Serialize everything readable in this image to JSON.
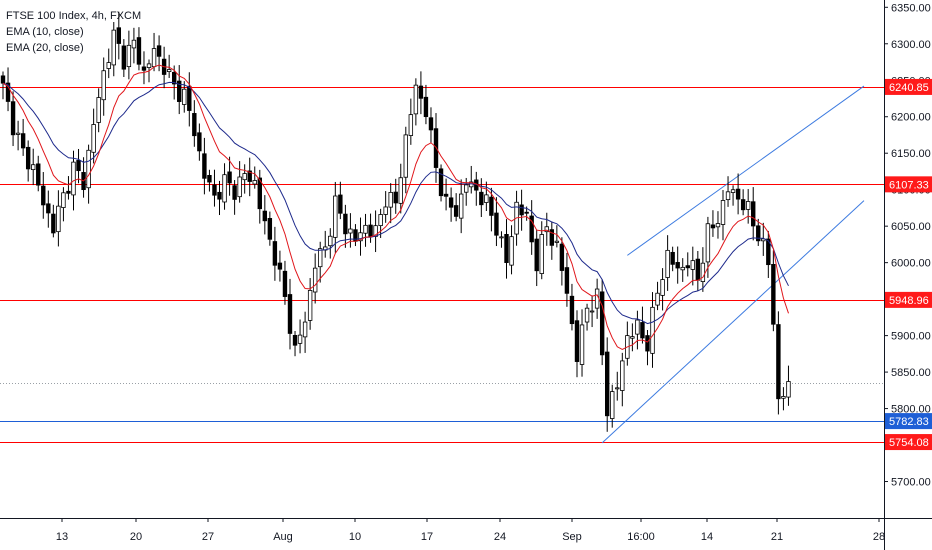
{
  "legend": {
    "symbol": "FTSE 100 Index, 4h, FXCM",
    "ema_fast": "EMA (10, close)",
    "ema_slow": "EMA (20, close)"
  },
  "colors": {
    "background": "#ffffff",
    "up_candle": "#ffffff",
    "down_candle": "#000000",
    "candle_border": "#000000",
    "ema_fast": "#e0161b",
    "ema_slow": "#1e2a8c",
    "resistance_line": "#ff0000",
    "support_line": "#1e5fd6",
    "channel": "#3d7be0",
    "axis_text": "#131722",
    "red_label": "#ff1a1a",
    "blue_label": "#1e5fd6",
    "dotted_line": "#9aa0a6"
  },
  "chart_data": {
    "type": "candlestick",
    "title": "FTSE 100 Index, 4h, FXCM",
    "ylim": [
      5650,
      6360
    ],
    "y_ticks": [
      5700,
      5750,
      5800,
      5850,
      5900,
      5950,
      6000,
      6050,
      6100,
      6150,
      6200,
      6250,
      6300,
      6350
    ],
    "y_tick_labels": [
      "5700.00",
      "5750.00",
      "5800.00",
      "5850.00",
      "5900.00",
      "5950.00",
      "6000.00",
      "6050.00",
      "6100.00",
      "6150.00",
      "6200.00",
      "6250.00",
      "6300.00",
      "6350.00"
    ],
    "x_tick_labels": [
      "13",
      "20",
      "27",
      "Aug",
      "10",
      "17",
      "24",
      "Sep",
      "16:00",
      "14",
      "21",
      "28"
    ],
    "horizontal_levels": [
      {
        "price": 6240.85,
        "label": "6240.85",
        "color": "red"
      },
      {
        "price": 6107.33,
        "label": "6107.33",
        "color": "red"
      },
      {
        "price": 5948.96,
        "label": "5948.96",
        "color": "red"
      },
      {
        "price": 5782.83,
        "label": "5782.83",
        "color": "blue"
      },
      {
        "price": 5754.08,
        "label": "5754.08",
        "color": "red"
      }
    ],
    "dotted_level": 5835,
    "channel": {
      "upper": [
        [
          124,
          6010
        ],
        [
          171,
          6242
        ]
      ],
      "lower": [
        [
          119,
          5753
        ],
        [
          171,
          6085
        ]
      ]
    },
    "ema_fast_legend": "EMA (10, close)",
    "ema_slow_legend": "EMA (20, close)",
    "anchors": [
      [
        0,
        6240
      ],
      [
        2,
        6190
      ],
      [
        4,
        6150
      ],
      [
        6,
        6130
      ],
      [
        8,
        6080
      ],
      [
        10,
        6050
      ],
      [
        12,
        6090
      ],
      [
        14,
        6130
      ],
      [
        16,
        6110
      ],
      [
        18,
        6190
      ],
      [
        20,
        6260
      ],
      [
        22,
        6310
      ],
      [
        24,
        6280
      ],
      [
        26,
        6300
      ],
      [
        28,
        6260
      ],
      [
        30,
        6290
      ],
      [
        32,
        6270
      ],
      [
        34,
        6240
      ],
      [
        36,
        6230
      ],
      [
        38,
        6180
      ],
      [
        40,
        6120
      ],
      [
        42,
        6090
      ],
      [
        44,
        6110
      ],
      [
        46,
        6100
      ],
      [
        48,
        6120
      ],
      [
        50,
        6110
      ],
      [
        52,
        6050
      ],
      [
        54,
        6010
      ],
      [
        56,
        5950
      ],
      [
        58,
        5880
      ],
      [
        60,
        5920
      ],
      [
        62,
        6000
      ],
      [
        64,
        6020
      ],
      [
        66,
        6080
      ],
      [
        68,
        6050
      ],
      [
        70,
        6030
      ],
      [
        72,
        6050
      ],
      [
        74,
        6040
      ],
      [
        76,
        6090
      ],
      [
        78,
        6080
      ],
      [
        80,
        6170
      ],
      [
        82,
        6240
      ],
      [
        84,
        6210
      ],
      [
        86,
        6130
      ],
      [
        88,
        6080
      ],
      [
        90,
        6070
      ],
      [
        92,
        6110
      ],
      [
        94,
        6100
      ],
      [
        96,
        6080
      ],
      [
        98,
        6050
      ],
      [
        100,
        6000
      ],
      [
        102,
        6080
      ],
      [
        104,
        6060
      ],
      [
        106,
        6000
      ],
      [
        108,
        6050
      ],
      [
        110,
        6020
      ],
      [
        112,
        5960
      ],
      [
        114,
        5870
      ],
      [
        116,
        5940
      ],
      [
        118,
        5950
      ],
      [
        120,
        5800
      ],
      [
        122,
        5830
      ],
      [
        124,
        5900
      ],
      [
        126,
        5910
      ],
      [
        128,
        5890
      ],
      [
        130,
        5960
      ],
      [
        132,
        6010
      ],
      [
        134,
        5990
      ],
      [
        136,
        6000
      ],
      [
        138,
        5980
      ],
      [
        140,
        6040
      ],
      [
        142,
        6060
      ],
      [
        144,
        6100
      ],
      [
        146,
        6090
      ],
      [
        148,
        6070
      ],
      [
        150,
        6040
      ],
      [
        152,
        6000
      ],
      [
        153,
        5920
      ],
      [
        154,
        5810
      ],
      [
        156,
        5830
      ]
    ]
  }
}
